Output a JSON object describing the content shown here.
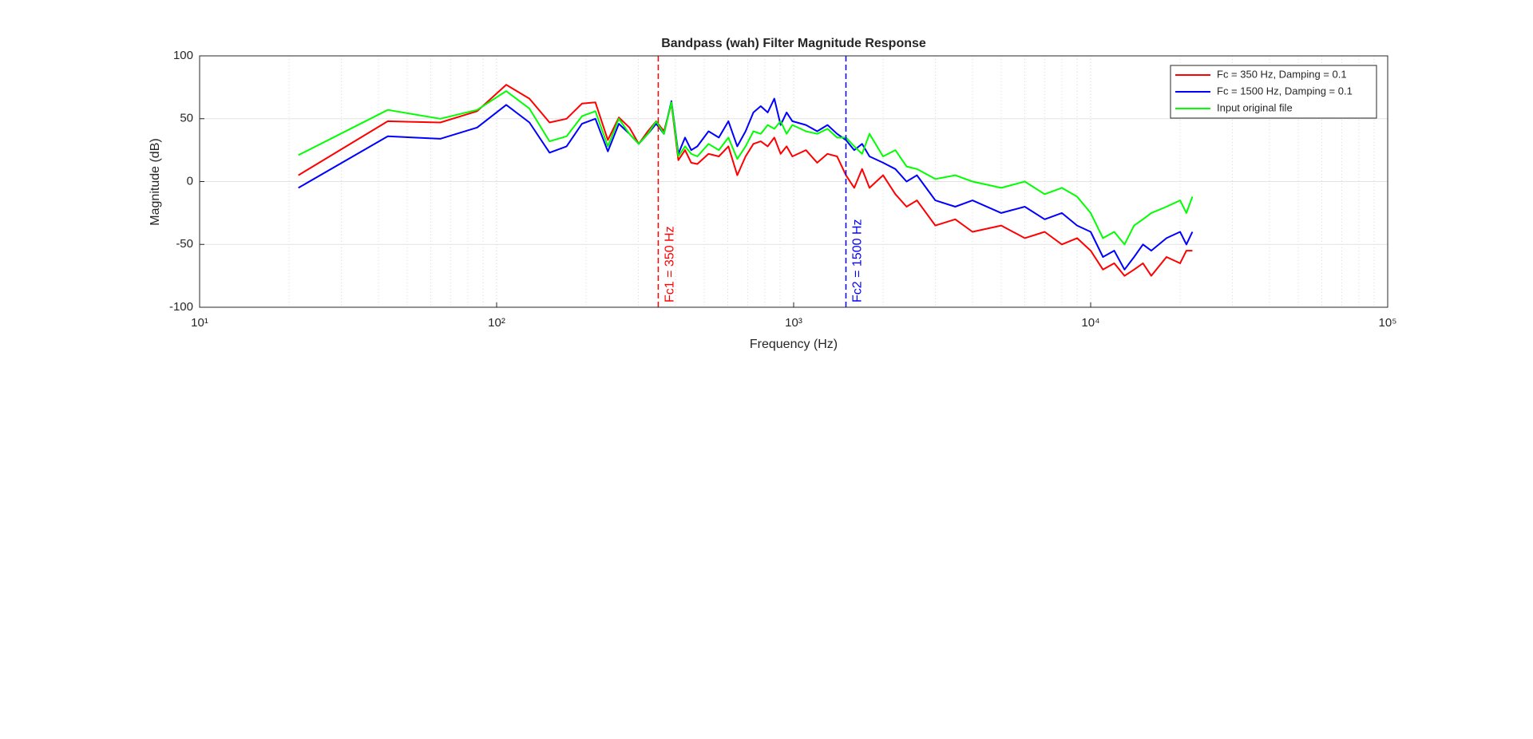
{
  "chart_data": {
    "type": "line",
    "title": "Bandpass (wah) Filter Magnitude Response",
    "x_label": "Frequency (Hz)",
    "y_label": "Magnitude (dB)",
    "x_scale": "log",
    "grid": true,
    "minor_grid": true,
    "legend_position": "northeast",
    "xlim": [
      10,
      100000
    ],
    "xticks": [
      {
        "value": 10,
        "label": "10¹"
      },
      {
        "value": 100,
        "label": "10²"
      },
      {
        "value": 1000,
        "label": "10³"
      },
      {
        "value": 10000,
        "label": "10⁴"
      },
      {
        "value": 100000,
        "label": "10⁵"
      }
    ],
    "ylim": [
      -100,
      100
    ],
    "yticks": [
      -100,
      -50,
      0,
      50,
      100
    ],
    "x": [
      21.5,
      43,
      64.6,
      86,
      107.7,
      129,
      150.7,
      172,
      193.8,
      215,
      236.9,
      258,
      280,
      301,
      323,
      344.5,
      366,
      387.6,
      409,
      431,
      452,
      474,
      517,
      560,
      603,
      646,
      689,
      732,
      775,
      818,
      861,
      904,
      947,
      990,
      1100,
      1200,
      1300,
      1400,
      1500,
      1600,
      1700,
      1800,
      2000,
      2200,
      2400,
      2600,
      3000,
      3500,
      4000,
      5000,
      6000,
      7000,
      8000,
      9000,
      10000,
      11000,
      12000,
      13000,
      14000,
      15000,
      16000,
      18000,
      20000,
      21000,
      22000
    ],
    "series": [
      {
        "name": "Fc = 350 Hz, Damping = 0.1",
        "color": "#ff0000",
        "values": [
          5,
          48,
          47,
          56,
          77,
          66,
          47,
          50,
          62,
          63,
          33,
          51,
          43,
          30,
          40,
          48,
          40,
          62,
          17,
          25,
          15,
          14,
          22,
          20,
          28,
          5,
          20,
          30,
          32,
          28,
          35,
          22,
          28,
          20,
          25,
          15,
          22,
          20,
          5,
          -5,
          10,
          -5,
          5,
          -10,
          -20,
          -15,
          -35,
          -30,
          -40,
          -35,
          -45,
          -40,
          -50,
          -45,
          -55,
          -70,
          -65,
          -75,
          -70,
          -65,
          -75,
          -60,
          -65,
          -55,
          -55
        ]
      },
      {
        "name": "Fc = 1500 Hz, Damping = 0.1",
        "color": "#0000ff",
        "values": [
          -5,
          36,
          34,
          43,
          61,
          47,
          23,
          28,
          46,
          50,
          24,
          46,
          38,
          30,
          38,
          46,
          38,
          64,
          22,
          35,
          25,
          28,
          40,
          35,
          48,
          28,
          40,
          55,
          60,
          55,
          66,
          45,
          55,
          48,
          45,
          40,
          45,
          38,
          33,
          25,
          30,
          20,
          15,
          10,
          0,
          5,
          -15,
          -20,
          -15,
          -25,
          -20,
          -30,
          -25,
          -35,
          -40,
          -60,
          -55,
          -70,
          -60,
          -50,
          -55,
          -45,
          -40,
          -50,
          -40
        ]
      },
      {
        "name": "Input original file",
        "color": "#00ff00",
        "values": [
          21,
          57,
          50,
          57,
          72,
          58,
          32,
          36,
          52,
          56,
          28,
          50,
          38,
          30,
          38,
          48,
          38,
          63,
          20,
          28,
          22,
          20,
          30,
          25,
          35,
          18,
          28,
          40,
          38,
          45,
          42,
          48,
          38,
          45,
          40,
          38,
          42,
          35,
          35,
          28,
          22,
          38,
          20,
          25,
          12,
          10,
          2,
          5,
          0,
          -5,
          0,
          -10,
          -5,
          -12,
          -25,
          -45,
          -40,
          -50,
          -35,
          -30,
          -25,
          -20,
          -15,
          -25,
          -12
        ]
      }
    ],
    "vlines": [
      {
        "x": 350,
        "label": "Fc1 = 350 Hz",
        "color": "#ff0000"
      },
      {
        "x": 1500,
        "label": "Fc2 = 1500 Hz",
        "color": "#0000ff"
      }
    ]
  }
}
